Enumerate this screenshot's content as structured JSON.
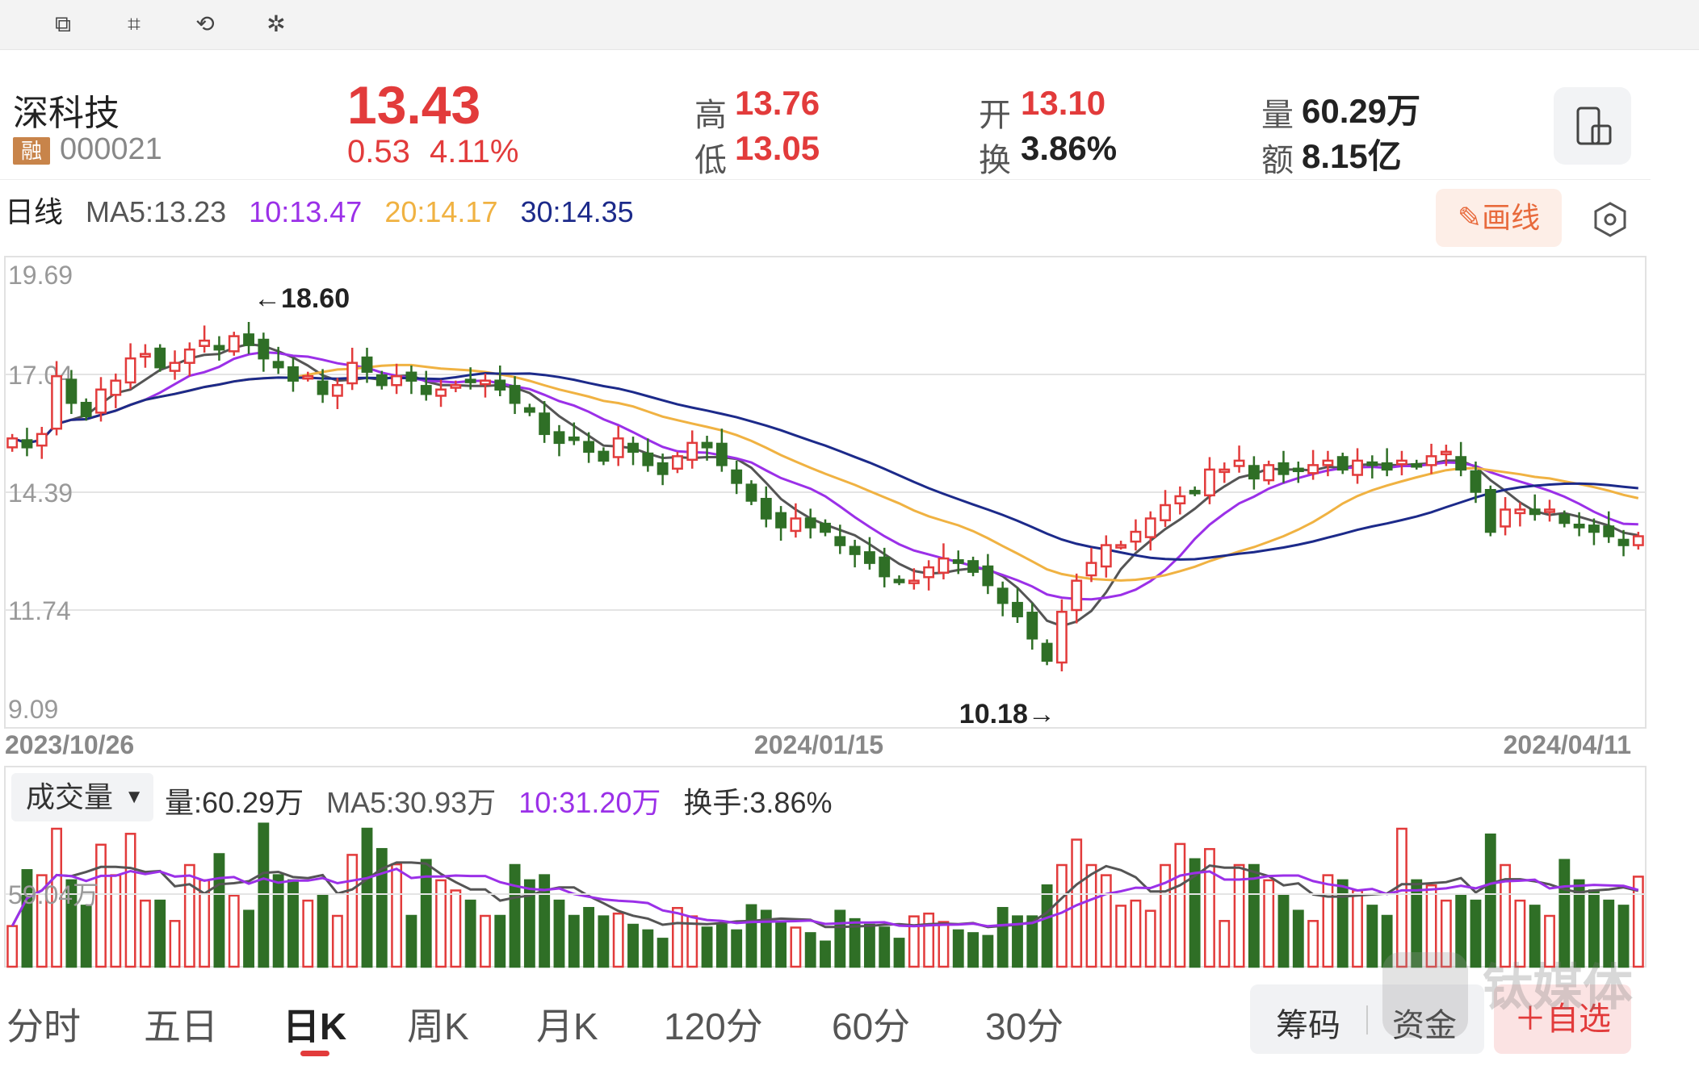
{
  "toolbar": {
    "icons": [
      "copy-icon",
      "screenshot-icon",
      "rotate-icon",
      "magic-wand-icon"
    ]
  },
  "stock": {
    "name": "深科技",
    "badge": "融",
    "code": "000021",
    "price": "13.43",
    "change": "0.53",
    "change_pct": "4.11%"
  },
  "quote": {
    "high_label": "高",
    "high": "13.76",
    "low_label": "低",
    "low": "13.05",
    "open_label": "开",
    "open": "13.10",
    "turnover_label": "换",
    "turnover": "3.86%",
    "volume_label": "量",
    "volume": "60.29万",
    "amount_label": "额",
    "amount": "8.15亿"
  },
  "ma_legend": {
    "period": "日线",
    "ma5": "MA5:13.23",
    "ma10": "10:13.47",
    "ma20": "20:14.17",
    "ma30": "30:14.35"
  },
  "buttons": {
    "draw": "✎画线"
  },
  "colors": {
    "up": "#e23b3b",
    "down": "#2f6f26",
    "ma5": "#555555",
    "ma10": "#9b30e8",
    "ma20": "#f0b242",
    "ma30": "#1c2a8a"
  },
  "chart_data": {
    "type": "candlestick",
    "y_ticks": [
      "19.69",
      "17.04",
      "14.39",
      "11.74",
      "9.09"
    ],
    "ylim": [
      9.09,
      19.69
    ],
    "x_ticks": [
      "2023/10/26",
      "2024/01/15",
      "2024/04/11"
    ],
    "annotations": {
      "max": "←18.60",
      "min": "10.18→"
    },
    "close": [
      15.6,
      15.4,
      15.7,
      17.0,
      16.4,
      16.1,
      16.7,
      16.9,
      17.4,
      17.5,
      17.2,
      17.3,
      17.6,
      17.8,
      17.6,
      17.9,
      17.7,
      17.4,
      17.2,
      16.9,
      17.0,
      16.6,
      16.8,
      17.3,
      17.1,
      16.8,
      17.0,
      16.9,
      16.6,
      16.7,
      16.8,
      16.9,
      16.9,
      16.7,
      16.4,
      16.2,
      15.7,
      15.5,
      15.6,
      15.3,
      15.1,
      15.6,
      15.3,
      15.0,
      14.8,
      15.2,
      15.5,
      15.4,
      15.0,
      14.6,
      14.2,
      13.8,
      13.6,
      13.8,
      13.6,
      13.5,
      13.2,
      13.0,
      12.8,
      12.5,
      12.4,
      12.4,
      12.7,
      12.9,
      12.8,
      12.6,
      12.3,
      11.9,
      11.6,
      11.1,
      10.6,
      11.7,
      12.4,
      12.8,
      13.2,
      13.2,
      13.5,
      13.8,
      14.1,
      14.3,
      14.4,
      14.9,
      14.9,
      15.1,
      14.7,
      15.0,
      14.8,
      14.9,
      15.0,
      15.1,
      14.9,
      15.1,
      15.0,
      14.9,
      15.1,
      15.0,
      15.2,
      15.3,
      14.9,
      14.4,
      13.5,
      14.0,
      14.0,
      13.9,
      14.0,
      13.7,
      13.6,
      13.5,
      13.4,
      13.2,
      13.4
    ],
    "series_volume": {
      "label": "成交量",
      "volume": "量:60.29万",
      "ma5": "MA5:30.93万",
      "ma10": "10:31.20万",
      "turnover": "换手:3.86%",
      "y_tick": "59.04万"
    }
  },
  "tabs": [
    "分时",
    "五日",
    "日K",
    "周K",
    "月K",
    "120分",
    "60分",
    "30分"
  ],
  "active_tab": 2,
  "side_buttons": {
    "chips": "筹码",
    "funds": "资金",
    "favorite": "＋自选"
  },
  "watermark": "钛媒体"
}
